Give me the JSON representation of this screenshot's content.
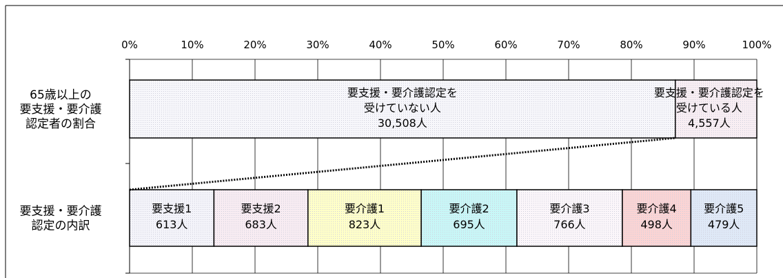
{
  "chart_data": {
    "type": "bar",
    "orientation": "horizontal",
    "stacked": "100%",
    "x_ticks": [
      "0%",
      "10%",
      "20%",
      "30%",
      "40%",
      "50%",
      "60%",
      "70%",
      "80%",
      "90%",
      "100%"
    ],
    "xlim": [
      0,
      100
    ],
    "grid": true,
    "bars": [
      {
        "label": [
          "65歳以上の",
          "要支援・要介護",
          "認定者の割合"
        ],
        "segments": [
          {
            "name": [
              "要支援・要介護認定を",
              "受けていない人"
            ],
            "value_label": "30,508人",
            "value": 30508,
            "color": "#f7f7fb"
          },
          {
            "name": [
              "要支援・要介護認定を",
              "受けている人"
            ],
            "value_label": "4,557人",
            "value": 4557,
            "color": "#f8eef3"
          }
        ]
      },
      {
        "label": [
          "要支援・要介護",
          "認定の内訳"
        ],
        "segments": [
          {
            "name": "要支援1",
            "value_label": "613人",
            "value": 613,
            "color": "#f4f4fa"
          },
          {
            "name": "要支援2",
            "value_label": "683人",
            "value": 683,
            "color": "#f8ecf2"
          },
          {
            "name": "要介護1",
            "value_label": "823人",
            "value": 823,
            "color": "#ffffc8"
          },
          {
            "name": "要介護2",
            "value_label": "695人",
            "value": 695,
            "color": "#c8f7f7"
          },
          {
            "name": "要介護3",
            "value_label": "766人",
            "value": 766,
            "color": "#fbf6fa"
          },
          {
            "name": "要介護4",
            "value_label": "498人",
            "value": 498,
            "color": "#fbd4d4"
          },
          {
            "name": "要介護5",
            "value_label": "479人",
            "value": 479,
            "color": "#dfe9f7"
          }
        ]
      }
    ]
  }
}
